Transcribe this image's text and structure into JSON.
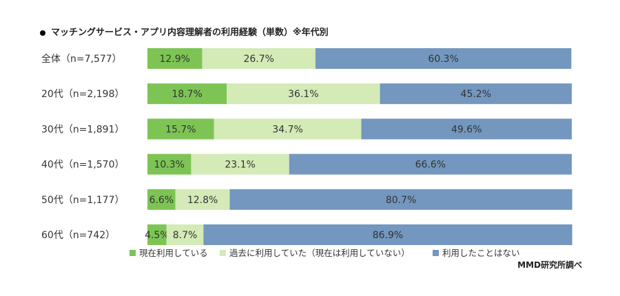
{
  "title": "マッチングサービス・アプリ内容理解者の利用経験（単数）※年代別",
  "source": "MMD研究所調べ",
  "colors": {
    "current": "#7dc454",
    "past": "#d4eab7",
    "never": "#7397bf"
  },
  "chart_data": {
    "type": "bar",
    "orientation": "horizontal-stacked-100",
    "categories": [
      "全体（n=7,577）",
      "20代（n=2,198）",
      "30代（n=1,891）",
      "40代（n=1,570）",
      "50代（n=1,177）",
      "60代（n=742）"
    ],
    "series": [
      {
        "name": "現在利用している",
        "values": [
          12.9,
          18.7,
          15.7,
          10.3,
          6.6,
          4.5
        ],
        "labels": [
          "12.9%",
          "18.7%",
          "15.7%",
          "10.3%",
          "6.6%",
          "4.5%"
        ]
      },
      {
        "name": "過去に利用していた（現在は利用していない）",
        "values": [
          26.7,
          36.1,
          34.7,
          23.1,
          12.8,
          8.7
        ],
        "labels": [
          "26.7%",
          "36.1%",
          "34.7%",
          "23.1%",
          "12.8%",
          "8.7%"
        ]
      },
      {
        "name": "利用したことはない",
        "values": [
          60.3,
          45.2,
          49.6,
          66.6,
          80.7,
          86.9
        ],
        "labels": [
          "60.3%",
          "45.2%",
          "49.6%",
          "66.6%",
          "80.7%",
          "86.9%"
        ]
      }
    ],
    "xlim": [
      0,
      100
    ],
    "legend_position": "bottom",
    "grid": false
  }
}
